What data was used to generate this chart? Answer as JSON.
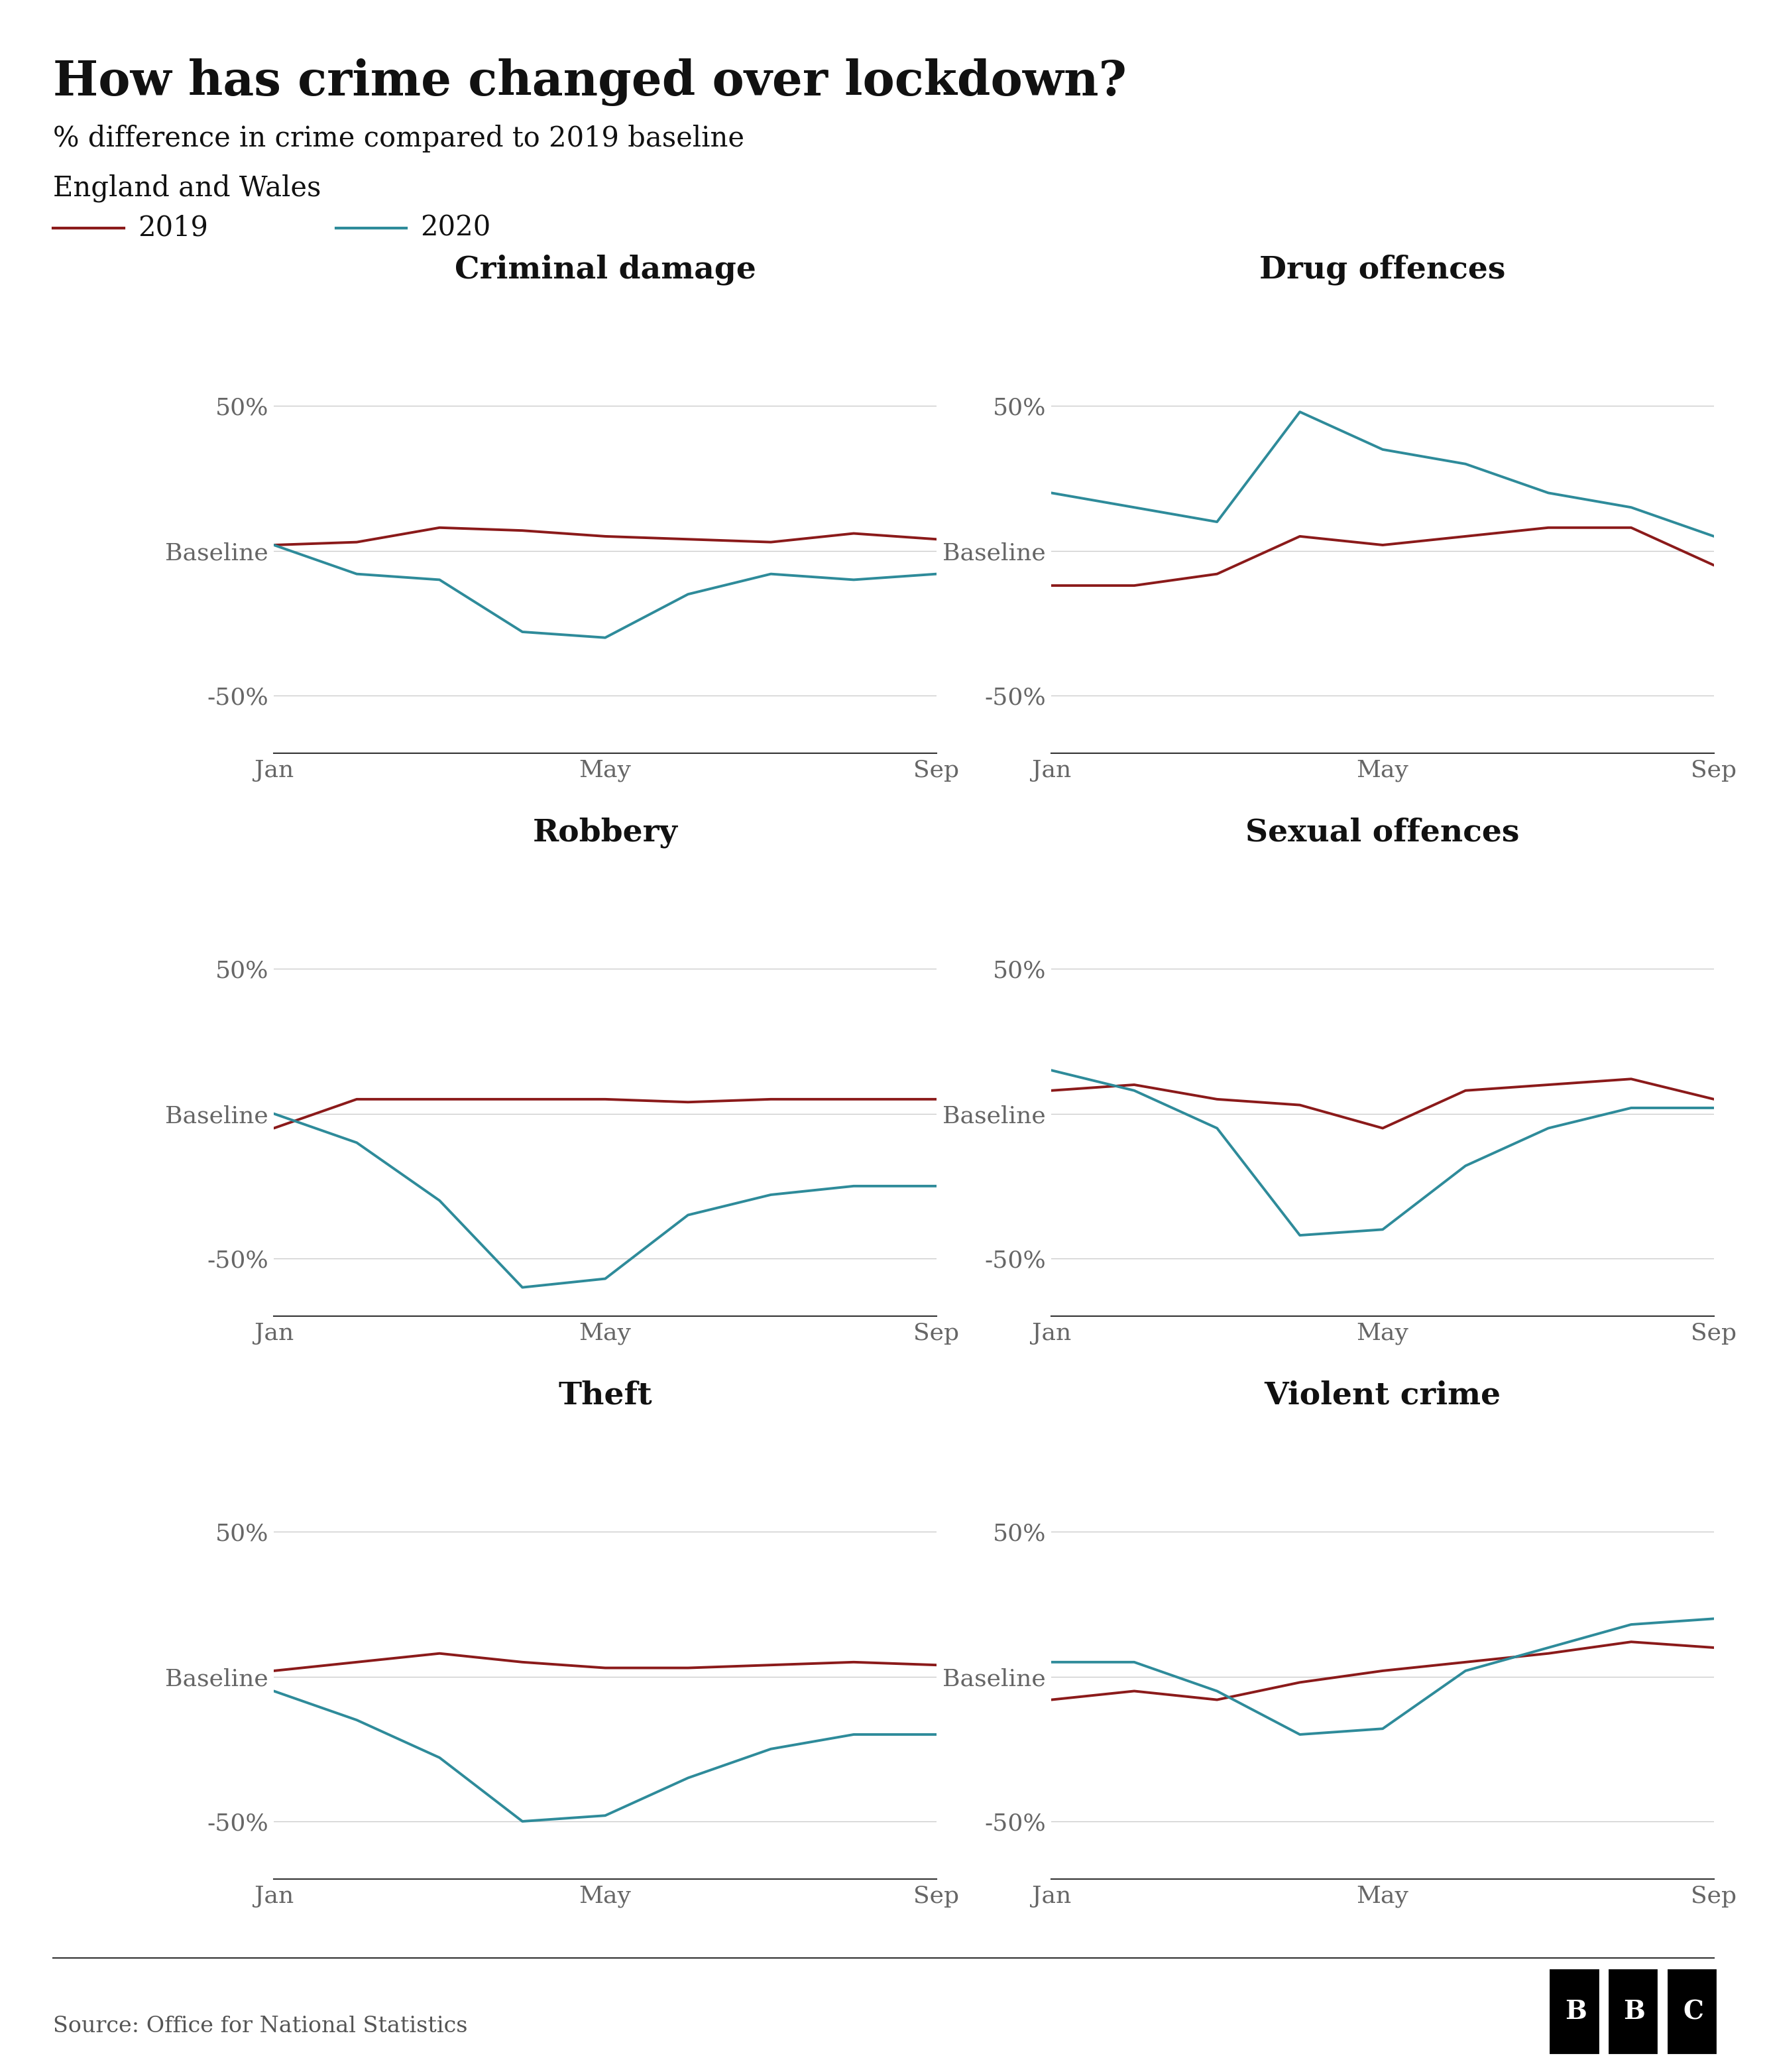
{
  "title": "How has crime changed over lockdown?",
  "subtitle1": "% difference in crime compared to 2019 baseline",
  "subtitle2": "England and Wales",
  "color_2019": "#8B1A1A",
  "color_2020": "#2E8B9A",
  "source": "Source: Office for National Statistics",
  "background_color": "#ffffff",
  "grid_color": "#cccccc",
  "title_fontsize": 52,
  "subtitle_fontsize": 30,
  "chart_title_fontsize": 34,
  "tick_fontsize": 26,
  "legend_fontsize": 30,
  "source_fontsize": 24,
  "charts": [
    {
      "title": "Criminal damage",
      "data_2019": [
        2,
        3,
        8,
        7,
        5,
        4,
        3,
        6,
        4
      ],
      "data_2020": [
        2,
        -8,
        -10,
        -28,
        -30,
        -15,
        -8,
        -10,
        -8
      ]
    },
    {
      "title": "Drug offences",
      "data_2019": [
        -12,
        -12,
        -8,
        5,
        2,
        5,
        8,
        8,
        -5
      ],
      "data_2020": [
        20,
        15,
        10,
        48,
        35,
        30,
        20,
        15,
        5
      ]
    },
    {
      "title": "Robbery",
      "data_2019": [
        -5,
        5,
        5,
        5,
        5,
        4,
        5,
        5,
        5
      ],
      "data_2020": [
        0,
        -10,
        -30,
        -60,
        -57,
        -35,
        -28,
        -25,
        -25
      ]
    },
    {
      "title": "Sexual offences",
      "data_2019": [
        8,
        10,
        5,
        3,
        -5,
        8,
        10,
        12,
        5
      ],
      "data_2020": [
        15,
        8,
        -5,
        -42,
        -40,
        -18,
        -5,
        2,
        2
      ]
    },
    {
      "title": "Theft",
      "data_2019": [
        2,
        5,
        8,
        5,
        3,
        3,
        4,
        5,
        4
      ],
      "data_2020": [
        -5,
        -15,
        -28,
        -50,
        -48,
        -35,
        -25,
        -20,
        -20
      ]
    },
    {
      "title": "Violent crime",
      "data_2019": [
        -8,
        -5,
        -8,
        -2,
        2,
        5,
        8,
        12,
        10
      ],
      "data_2020": [
        5,
        5,
        -5,
        -20,
        -18,
        2,
        10,
        18,
        20
      ]
    }
  ]
}
